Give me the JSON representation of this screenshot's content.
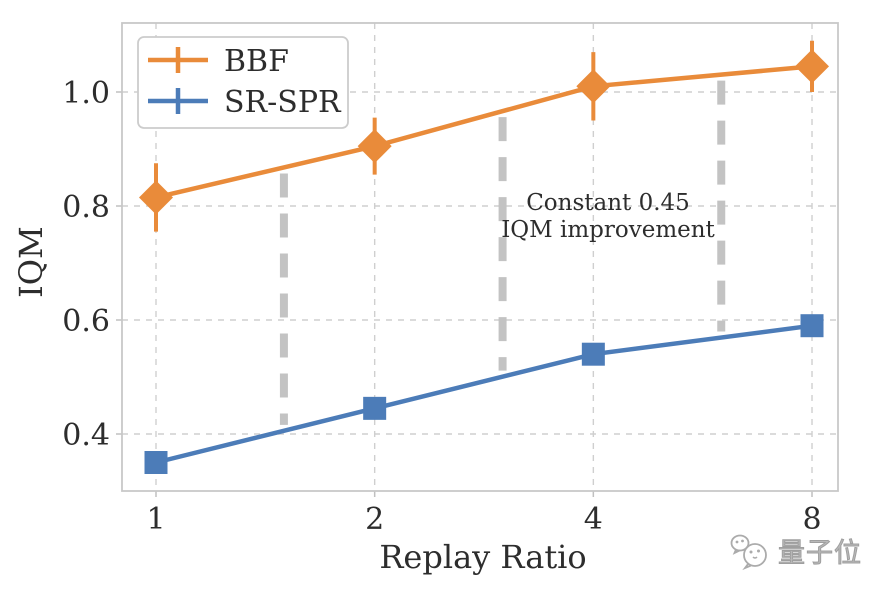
{
  "watermark": {
    "text": "量子位",
    "logo": "qbitai-bubbles-logo",
    "color": "#ababab"
  },
  "chart_data": {
    "type": "line",
    "title": "",
    "xlabel": "Replay Ratio",
    "ylabel": "IQM",
    "x_scale": "log2",
    "x": [
      1,
      2,
      4,
      8
    ],
    "x_tick_labels": [
      "1",
      "2",
      "4",
      "8"
    ],
    "y_ticks": [
      0.4,
      0.6,
      0.8,
      1.0
    ],
    "y_tick_labels": [
      "0.4",
      "0.6",
      "0.8",
      "1.0"
    ],
    "xlim": [
      0.9,
      8.7
    ],
    "ylim": [
      0.3,
      1.12
    ],
    "grid": true,
    "grid_style": "dashed",
    "legend_position": "upper left",
    "series": [
      {
        "name": "BBF",
        "color": "#E98B3A",
        "marker": "diamond",
        "values": [
          0.815,
          0.905,
          1.01,
          1.045
        ],
        "err": [
          0.06,
          0.05,
          0.06,
          0.045
        ]
      },
      {
        "name": "SR-SPR",
        "color": "#4C7CB8",
        "marker": "square",
        "values": [
          0.35,
          0.445,
          0.54,
          0.59
        ],
        "err": [
          0.015,
          0.015,
          0.015,
          0.015
        ]
      }
    ],
    "connectors": {
      "x": [
        1.5,
        3,
        6
      ],
      "color": "#C3C3C3",
      "style": "thick-dashed",
      "meaning": "constant gap between curves"
    },
    "annotation": {
      "lines": [
        "Constant 0.45",
        "IQM improvement"
      ]
    },
    "style_colors": {
      "grid": "#CFCFCF",
      "spine": "#C8C8C8",
      "tick": "#C0C0C0",
      "text": "#2D2D2D",
      "legend_border": "#CCCCCC",
      "legend_fill": "#FFFFFF"
    }
  }
}
